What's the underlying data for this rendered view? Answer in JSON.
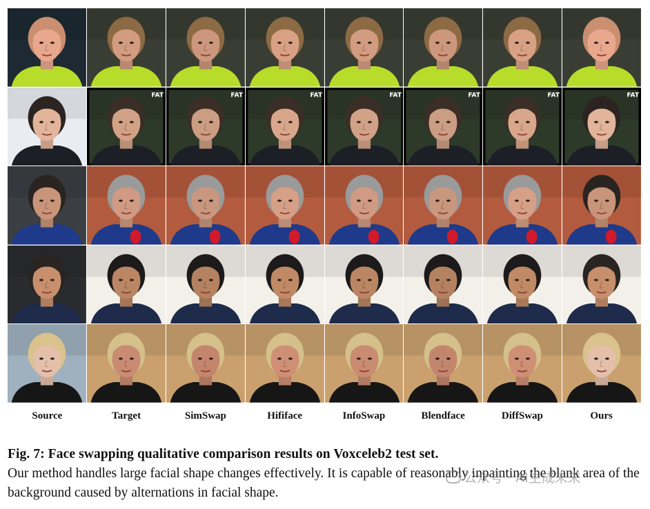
{
  "columns": [
    "Source",
    "Target",
    "SimSwap",
    "Hififace",
    "InfoSwap",
    "Blendface",
    "DiffSwap",
    "Ours"
  ],
  "rows": [
    {
      "bg": "#3a3d34",
      "skin": "#d9a184",
      "hair": "#7a5a3c",
      "cloth": "#b7dc2a",
      "srcSkin": "#e8a88e",
      "srcHair": "#c98f70",
      "srcBg": "#1d2a33",
      "tgtHair": "#8c6a44"
    },
    {
      "bg": "#2d3a2a",
      "skin": "#d8a78b",
      "hair": "#3a2e26",
      "cloth": "#1c1f26",
      "srcSkin": "#e2b49a",
      "srcHair": "#2b2420",
      "srcBg": "#e9edf2",
      "tgtHair": "#3a2e26"
    },
    {
      "bg": "#b35b3e",
      "skin": "#d6a086",
      "hair": "#9a9a9a",
      "cloth": "#1f3a8a",
      "srcSkin": "#c9957a",
      "srcHair": "#2a2420",
      "srcBg": "#3b3f44",
      "tgtHair": "#9a9a9a"
    },
    {
      "bg": "#f3f0ea",
      "skin": "#c08a66",
      "hair": "#1c1a1a",
      "cloth": "#1e2b4a",
      "srcSkin": "#c88f6c",
      "srcHair": "#2a2522",
      "srcBg": "#2a2b2e",
      "tgtHair": "#1c1a1a"
    },
    {
      "bg": "#c9a06e",
      "skin": "#cf8f74",
      "hair": "#d4c08a",
      "cloth": "#161616",
      "srcSkin": "#e4c0aa",
      "srcHair": "#d9c28c",
      "srcBg": "#9fb0bf",
      "tgtHair": "#d4c08a"
    }
  ],
  "fat_badge": "FAT",
  "caption": {
    "title": "Fig. 7: Face swapping qualitative comparison results on Voxceleb2 test set.",
    "body": "Our method handles large facial shape changes effectively. It is capable of reasonably inpainting the blank area of the background caused by alternations in facial shape."
  },
  "watermark": "公众号 · AI生成未来"
}
